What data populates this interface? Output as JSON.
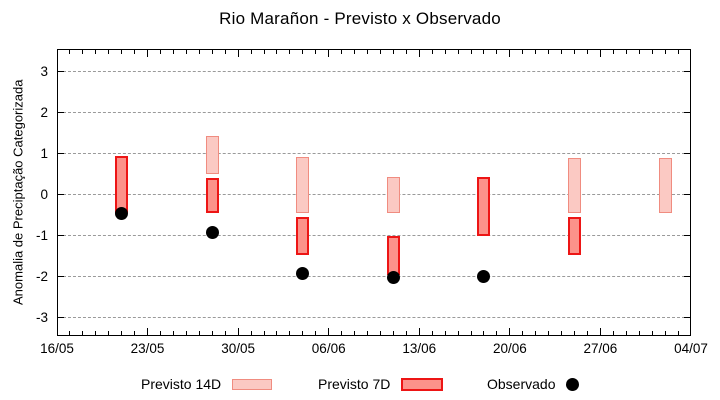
{
  "chart_data": {
    "type": "bar",
    "subtype": "vertical-range-bars-with-scatter-overlay",
    "title": "Rio Marañon - Previsto x Observado",
    "ylabel": "Anomalia de Preciptação Categorizada",
    "ylim": [
      -3.5,
      3.5
    ],
    "yticks": [
      3,
      2,
      1,
      0,
      -1,
      -2,
      -3
    ],
    "x_axis_days_total": 49,
    "xticks": [
      {
        "label": "16/05",
        "day": 0
      },
      {
        "label": "23/05",
        "day": 7
      },
      {
        "label": "30/05",
        "day": 14
      },
      {
        "label": "06/06",
        "day": 21
      },
      {
        "label": "13/06",
        "day": 28
      },
      {
        "label": "20/06",
        "day": 35
      },
      {
        "label": "27/06",
        "day": 42
      },
      {
        "label": "04/07",
        "day": 49
      }
    ],
    "grid": "horizontal dashed gridlines, boxed axes with mirrored ticks, daily minor ticks on x axis",
    "legend_position": "bottom center, outside plot",
    "colors": {
      "previsto_14d_fill": "#fbc9c3",
      "previsto_14d_border": "#f08c80",
      "previsto_7d_fill": "#fc928a",
      "previsto_7d_border": "#ed1515",
      "observado": "#000000",
      "gridline": "#9a9a9a"
    },
    "series": [
      {
        "name": "Previsto 14D",
        "type": "range_bar",
        "fill": "#fbc9c3",
        "border": "#f08c80",
        "points": [
          {
            "date": "28/05",
            "day": 12,
            "low": 0.5,
            "high": 1.42
          },
          {
            "date": "04/06",
            "day": 19,
            "low": -0.45,
            "high": 0.92
          },
          {
            "date": "11/06",
            "day": 26,
            "low": -0.45,
            "high": 0.42
          },
          {
            "date": "25/06",
            "day": 40,
            "low": -0.45,
            "high": 0.9
          },
          {
            "date": "02/07",
            "day": 47,
            "low": -0.45,
            "high": 0.9
          }
        ]
      },
      {
        "name": "Previsto 7D",
        "type": "range_bar",
        "fill": "#fc928a",
        "border": "#ed1515",
        "points": [
          {
            "date": "21/05",
            "day": 5,
            "low": -0.45,
            "high": 0.94
          },
          {
            "date": "28/05",
            "day": 12,
            "low": -0.45,
            "high": 0.41
          },
          {
            "date": "04/06",
            "day": 19,
            "low": -1.48,
            "high": -0.55
          },
          {
            "date": "11/06",
            "day": 26,
            "low": -1.97,
            "high": -1.0
          },
          {
            "date": "18/06",
            "day": 33,
            "low": -1.0,
            "high": 0.42
          },
          {
            "date": "25/06",
            "day": 40,
            "low": -1.48,
            "high": -0.55
          }
        ]
      },
      {
        "name": "Observado",
        "type": "scatter",
        "color": "#000000",
        "points": [
          {
            "date": "21/05",
            "day": 5,
            "value": -0.46
          },
          {
            "date": "28/05",
            "day": 12,
            "value": -0.92
          },
          {
            "date": "04/06",
            "day": 19,
            "value": -1.92
          },
          {
            "date": "11/06",
            "day": 26,
            "value": -2.02
          },
          {
            "date": "18/06",
            "day": 33,
            "value": -2.01
          }
        ]
      }
    ]
  }
}
